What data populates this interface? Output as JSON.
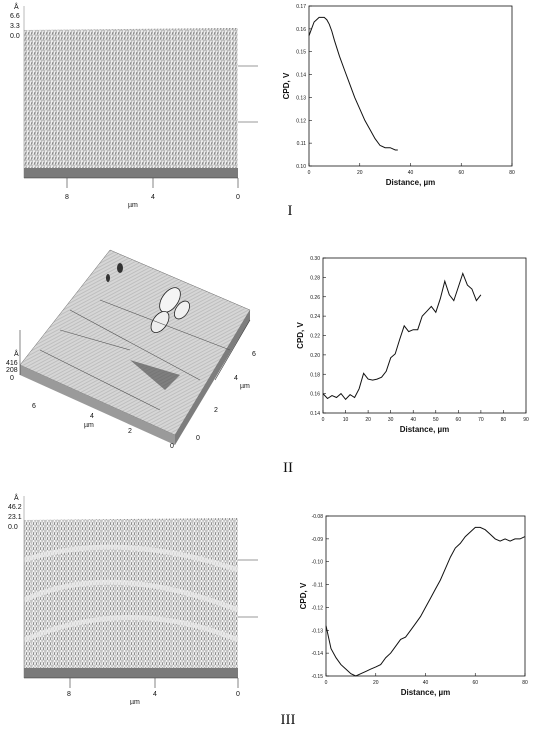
{
  "panels": [
    {
      "label": "I",
      "afm": {
        "z_unit": "Å",
        "z_ticks": [
          "6.6",
          "3.3",
          "0.0"
        ],
        "x_ticks": [
          "8",
          "4",
          "0"
        ],
        "x_unit": "µm"
      }
    },
    {
      "label": "II",
      "afm": {
        "z_unit": "Å",
        "z_ticks": [
          "416",
          "208",
          "0"
        ],
        "x_ticks": [
          "6",
          "4",
          "2",
          "0"
        ],
        "x_unit": "µm",
        "y_ticks": [
          "6",
          "4",
          "2",
          "0"
        ],
        "y_unit": "µm"
      }
    },
    {
      "label": "III",
      "afm": {
        "z_unit": "Å",
        "z_ticks": [
          "46.2",
          "23.1",
          "0.0"
        ],
        "x_ticks": [
          "8",
          "4",
          "0"
        ],
        "x_unit": "µm"
      }
    }
  ],
  "chart_data": [
    {
      "type": "line",
      "xlabel": "Distance, µm",
      "ylabel": "CPD, V",
      "xlim": [
        0,
        80
      ],
      "ylim": [
        0.1,
        0.17
      ],
      "xticks": [
        "0",
        "20",
        "40",
        "60",
        "80"
      ],
      "yticks": [
        "0.17",
        "0.16",
        "0.15",
        "0.14",
        "0.13",
        "0.12",
        "0.11",
        "0.10"
      ],
      "x": [
        0,
        1,
        2,
        3,
        4,
        5,
        6,
        7,
        8,
        9,
        10,
        12,
        14,
        16,
        18,
        20,
        22,
        24,
        26,
        28,
        30,
        32,
        34,
        35
      ],
      "y": [
        0.157,
        0.16,
        0.163,
        0.164,
        0.165,
        0.165,
        0.165,
        0.164,
        0.162,
        0.159,
        0.155,
        0.148,
        0.142,
        0.136,
        0.13,
        0.125,
        0.12,
        0.116,
        0.112,
        0.109,
        0.108,
        0.108,
        0.107,
        0.107
      ]
    },
    {
      "type": "line",
      "xlabel": "Distance, µm",
      "ylabel": "CPD, V",
      "xlim": [
        0,
        90
      ],
      "ylim": [
        0.14,
        0.3
      ],
      "xticks": [
        "0",
        "10",
        "20",
        "30",
        "40",
        "50",
        "60",
        "70",
        "80",
        "90"
      ],
      "yticks": [
        "0.30",
        "0.28",
        "0.26",
        "0.24",
        "0.22",
        "0.20",
        "0.18",
        "0.16",
        "0.14"
      ],
      "x": [
        0,
        2,
        4,
        6,
        8,
        10,
        12,
        14,
        16,
        18,
        20,
        22,
        24,
        26,
        28,
        30,
        32,
        34,
        36,
        38,
        40,
        42,
        44,
        46,
        48,
        50,
        52,
        54,
        56,
        58,
        60,
        62,
        64,
        66,
        68,
        70
      ],
      "y": [
        0.16,
        0.155,
        0.158,
        0.156,
        0.16,
        0.154,
        0.159,
        0.156,
        0.165,
        0.181,
        0.175,
        0.174,
        0.175,
        0.177,
        0.183,
        0.197,
        0.201,
        0.216,
        0.23,
        0.224,
        0.226,
        0.226,
        0.24,
        0.245,
        0.25,
        0.244,
        0.258,
        0.276,
        0.262,
        0.256,
        0.27,
        0.284,
        0.272,
        0.268,
        0.256,
        0.262
      ]
    },
    {
      "type": "line",
      "xlabel": "Distance, µm",
      "ylabel": "CPD, V",
      "xlim": [
        0,
        80
      ],
      "ylim": [
        -0.15,
        -0.08
      ],
      "xticks": [
        "0",
        "20",
        "40",
        "60",
        "80"
      ],
      "yticks": [
        "-0.08",
        "-0.09",
        "-0.10",
        "-0.11",
        "-0.12",
        "-0.13",
        "-0.14",
        "-0.15"
      ],
      "x": [
        0,
        2,
        4,
        6,
        8,
        10,
        12,
        14,
        16,
        18,
        20,
        22,
        24,
        26,
        28,
        30,
        32,
        34,
        36,
        38,
        40,
        42,
        44,
        46,
        48,
        50,
        52,
        54,
        56,
        58,
        60,
        62,
        64,
        66,
        68,
        70,
        72,
        74,
        76,
        78,
        80
      ],
      "y": [
        -0.128,
        -0.138,
        -0.142,
        -0.145,
        -0.147,
        -0.149,
        -0.15,
        -0.149,
        -0.148,
        -0.147,
        -0.146,
        -0.145,
        -0.142,
        -0.14,
        -0.137,
        -0.134,
        -0.133,
        -0.13,
        -0.127,
        -0.124,
        -0.12,
        -0.116,
        -0.112,
        -0.108,
        -0.103,
        -0.098,
        -0.094,
        -0.092,
        -0.089,
        -0.087,
        -0.085,
        -0.085,
        -0.086,
        -0.088,
        -0.09,
        -0.091,
        -0.09,
        -0.091,
        -0.09,
        -0.09,
        -0.089
      ]
    }
  ]
}
